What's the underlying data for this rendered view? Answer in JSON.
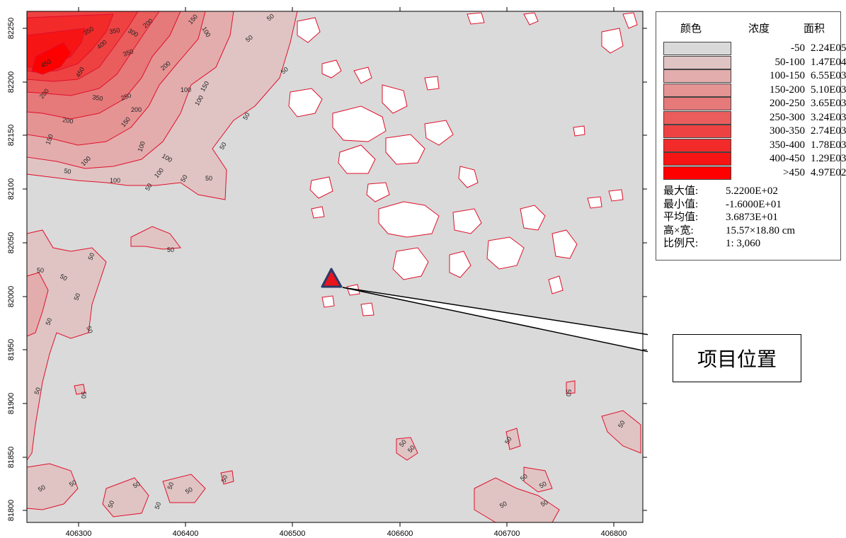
{
  "map": {
    "x_ticks": [
      "406300",
      "406400",
      "406500",
      "406600",
      "406700",
      "406800"
    ],
    "y_ticks": [
      "82250",
      "82200",
      "82150",
      "82100",
      "82050",
      "82000",
      "81950",
      "81900",
      "81850",
      "81800"
    ],
    "contour_labels": [
      "50",
      "100",
      "150",
      "200",
      "250",
      "300",
      "350",
      "400",
      "450"
    ],
    "colors": {
      "background": "#dadada",
      "contour_line": "#e0102a",
      "project_marker_fill": "#e8151c",
      "project_marker_stroke": "#2a3a6a"
    }
  },
  "legend": {
    "header": {
      "color": "颜色",
      "concentration": "浓度",
      "area": "面积"
    },
    "rows": [
      {
        "range": "-50",
        "area": "2.24E05",
        "color": "#d9d9d9"
      },
      {
        "range": "50-100",
        "area": "1.47E04",
        "color": "#e0c4c4"
      },
      {
        "range": "100-150",
        "area": "6.55E03",
        "color": "#e3adad"
      },
      {
        "range": "150-200",
        "area": "5.10E03",
        "color": "#e59494"
      },
      {
        "range": "200-250",
        "area": "3.65E03",
        "color": "#e67979"
      },
      {
        "range": "250-300",
        "area": "3.24E03",
        "color": "#ea5d5d"
      },
      {
        "range": "300-350",
        "area": "2.74E03",
        "color": "#ee4242"
      },
      {
        "range": "350-400",
        "area": "1.78E03",
        "color": "#f22a2a"
      },
      {
        "range": "400-450",
        "area": "1.29E03",
        "color": "#f71414"
      },
      {
        "range": ">450",
        "area": "4.97E02",
        "color": "#ff0000"
      }
    ],
    "stats": [
      {
        "label": "最大值:",
        "value": "5.2200E+02"
      },
      {
        "label": "最小值:",
        "value": "-1.6000E+01"
      },
      {
        "label": "平均值:",
        "value": "3.6873E+01"
      },
      {
        "label": "高×宽:",
        "value": "15.57×18.80 cm"
      },
      {
        "label": "比例尺:",
        "value": "1: 3,060"
      }
    ]
  },
  "annotation": {
    "project_label": "项目位置"
  }
}
